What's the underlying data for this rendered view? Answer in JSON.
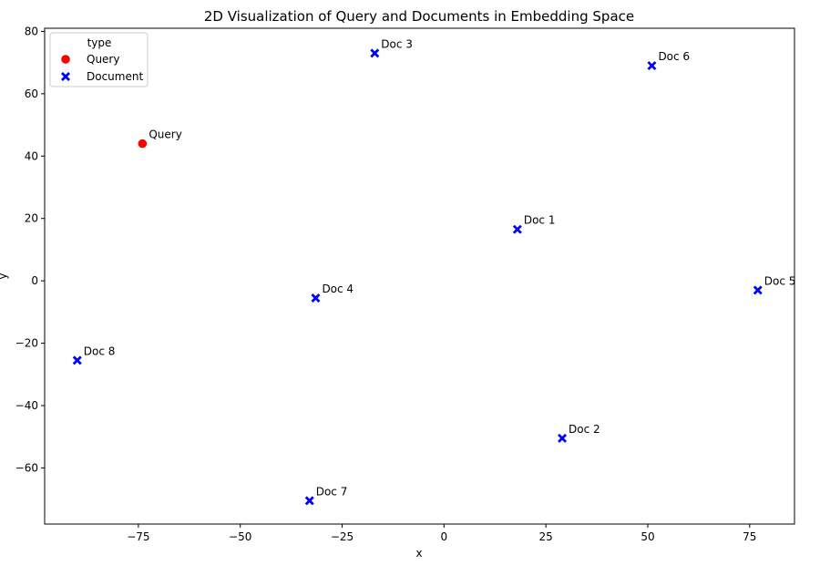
{
  "chart_data": {
    "type": "scatter",
    "title": "2D Visualization of Query and Documents in Embedding Space",
    "xlabel": "x",
    "ylabel": "y",
    "xlim": [
      -98,
      86
    ],
    "ylim": [
      -78,
      81
    ],
    "xticks": [
      -75,
      -50,
      -25,
      0,
      25,
      50,
      75
    ],
    "yticks": [
      -60,
      -40,
      -20,
      0,
      20,
      40,
      60,
      80
    ],
    "grid": false,
    "legend": {
      "title": "type",
      "placement": "top-left",
      "entries": [
        {
          "label": "Query",
          "marker": "circle",
          "color": "#ff0000"
        },
        {
          "label": "Document",
          "marker": "x",
          "color": "#0000ff"
        }
      ]
    },
    "points": [
      {
        "label": "Query",
        "type": "Query",
        "x": -74,
        "y": 44
      },
      {
        "label": "Doc 1",
        "type": "Document",
        "x": 18,
        "y": 16.5
      },
      {
        "label": "Doc 2",
        "type": "Document",
        "x": 29,
        "y": -50.5
      },
      {
        "label": "Doc 3",
        "type": "Document",
        "x": -17,
        "y": 73
      },
      {
        "label": "Doc 4",
        "type": "Document",
        "x": -31.5,
        "y": -5.5
      },
      {
        "label": "Doc 5",
        "type": "Document",
        "x": 77,
        "y": -3
      },
      {
        "label": "Doc 6",
        "type": "Document",
        "x": 51,
        "y": 69
      },
      {
        "label": "Doc 7",
        "type": "Document",
        "x": -33,
        "y": -70.5
      },
      {
        "label": "Doc 8",
        "type": "Document",
        "x": -90,
        "y": -25.5
      }
    ]
  }
}
